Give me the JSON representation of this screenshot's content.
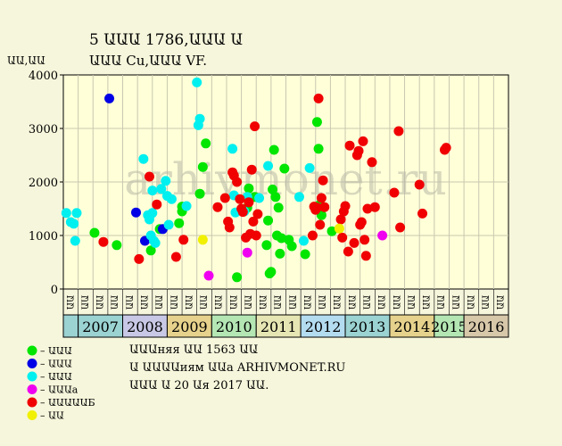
{
  "chart_data": {
    "type": "scatter",
    "title_line1": "5 ԱԱԱ 1786,ԱԱԱ Ա",
    "title_line2": "ԱԱԱ Cu,ԱԱԱ VF.",
    "ylabel": "ԱԱ,ԱԱ",
    "ylim": [
      0,
      4000
    ],
    "yticks": [
      0,
      1000,
      2000,
      3000,
      4000
    ],
    "grid": true,
    "watermark": "arhivmonet.ru",
    "xlim": [
      0,
      30
    ],
    "month_ticks": [
      "ԱԱ",
      "ԱԱ",
      "ԱԱ",
      "ԱԱ",
      "ԱԱ",
      "ԱԱ",
      "ԱԱ",
      "ԱԱ",
      "ԱԱ",
      "ԱԱ",
      "ԱԱ",
      "ԱԱ",
      "ԱԱ",
      "ԱԱ",
      "ԱԱ",
      "ԱԱ",
      "ԱԱ",
      "ԱԱ",
      "ԱԱ",
      "ԱԱ",
      "ԱԱ",
      "ԱԱ",
      "ԱԱ",
      "ԱԱ",
      "ԱԱ",
      "ԱԱ",
      "ԱԱ",
      "ԱԱ",
      "ԱԱ",
      "ԱԱ"
    ],
    "years": [
      {
        "label": "",
        "start": 0,
        "end": 1,
        "color": "#9bd2d2"
      },
      {
        "label": "2007",
        "start": 1,
        "end": 4,
        "color": "#9bd2d2"
      },
      {
        "label": "2008",
        "start": 4,
        "end": 7,
        "color": "#c8c8e6"
      },
      {
        "label": "2009",
        "start": 7,
        "end": 10,
        "color": "#e6d28c"
      },
      {
        "label": "2010",
        "start": 10,
        "end": 13,
        "color": "#b4e6b4"
      },
      {
        "label": "2011",
        "start": 13,
        "end": 16,
        "color": "#e6e6b4"
      },
      {
        "label": "2012",
        "start": 16,
        "end": 19,
        "color": "#b4dcf0"
      },
      {
        "label": "2013",
        "start": 19,
        "end": 22,
        "color": "#9bd2d2"
      },
      {
        "label": "2014",
        "start": 22,
        "end": 25,
        "color": "#e6d28c"
      },
      {
        "label": "2015",
        "start": 25,
        "end": 27,
        "color": "#b4e6b4"
      },
      {
        "label": "2016",
        "start": 27,
        "end": 30,
        "color": "#d7c8aa"
      }
    ],
    "series": [
      {
        "name": "– ԱԱԱ",
        "color": "#00e600",
        "points": [
          [
            2.1,
            1050
          ],
          [
            3.6,
            820
          ],
          [
            5.9,
            720
          ],
          [
            6.5,
            1120
          ],
          [
            7.8,
            1230
          ],
          [
            8.0,
            1450
          ],
          [
            8.0,
            1540
          ],
          [
            9.2,
            1780
          ],
          [
            9.4,
            2280
          ],
          [
            9.6,
            2720
          ],
          [
            11.7,
            220
          ],
          [
            12.4,
            1520
          ],
          [
            12.5,
            1880
          ],
          [
            12.9,
            1720
          ],
          [
            13.7,
            820
          ],
          [
            13.8,
            1280
          ],
          [
            13.9,
            290
          ],
          [
            14.0,
            320
          ],
          [
            14.1,
            1860
          ],
          [
            14.2,
            2600
          ],
          [
            14.3,
            1720
          ],
          [
            14.4,
            1000
          ],
          [
            14.5,
            1520
          ],
          [
            14.6,
            660
          ],
          [
            14.7,
            950
          ],
          [
            14.9,
            2250
          ],
          [
            15.2,
            920
          ],
          [
            15.4,
            800
          ],
          [
            16.3,
            650
          ],
          [
            17.1,
            3120
          ],
          [
            17.2,
            2620
          ],
          [
            17.3,
            1580
          ],
          [
            17.4,
            1380
          ],
          [
            18.1,
            1080
          ]
        ]
      },
      {
        "name": "– ԱԱԱ",
        "color": "#0000e6",
        "points": [
          [
            3.1,
            3560
          ],
          [
            4.9,
            1430
          ],
          [
            5.5,
            900
          ],
          [
            6.7,
            1120
          ]
        ]
      },
      {
        "name": "– ԱԱԱ",
        "color": "#00f0f0",
        "points": [
          [
            0.2,
            1420
          ],
          [
            0.5,
            1250
          ],
          [
            0.7,
            1220
          ],
          [
            0.8,
            900
          ],
          [
            0.9,
            1420
          ],
          [
            5.4,
            2430
          ],
          [
            5.7,
            1380
          ],
          [
            5.8,
            1300
          ],
          [
            5.9,
            1000
          ],
          [
            6.0,
            1840
          ],
          [
            6.0,
            1420
          ],
          [
            6.1,
            900
          ],
          [
            6.2,
            860
          ],
          [
            6.6,
            1870
          ],
          [
            6.9,
            2020
          ],
          [
            7.0,
            1740
          ],
          [
            7.1,
            1200
          ],
          [
            7.3,
            1680
          ],
          [
            8.3,
            1550
          ],
          [
            9.0,
            3860
          ],
          [
            9.1,
            3060
          ],
          [
            9.2,
            3180
          ],
          [
            11.4,
            2620
          ],
          [
            11.5,
            1750
          ],
          [
            11.6,
            1430
          ],
          [
            12.2,
            1450
          ],
          [
            12.4,
            1720
          ],
          [
            13.2,
            1700
          ],
          [
            13.8,
            2300
          ],
          [
            15.9,
            1720
          ],
          [
            16.2,
            900
          ],
          [
            16.6,
            2260
          ]
        ]
      },
      {
        "name": "– ԱԱԱа",
        "color": "#f000f0",
        "points": [
          [
            9.8,
            250
          ],
          [
            12.4,
            680
          ],
          [
            21.5,
            1000
          ]
        ]
      },
      {
        "name": "– ԱԱԱԱԱБ",
        "color": "#f00000",
        "points": [
          [
            2.7,
            880
          ],
          [
            5.1,
            560
          ],
          [
            5.8,
            2100
          ],
          [
            6.3,
            1580
          ],
          [
            7.6,
            600
          ],
          [
            8.1,
            920
          ],
          [
            10.4,
            1530
          ],
          [
            10.9,
            1700
          ],
          [
            11.1,
            1260
          ],
          [
            11.2,
            1150
          ],
          [
            11.4,
            2180
          ],
          [
            11.5,
            2120
          ],
          [
            11.7,
            2000
          ],
          [
            11.9,
            1680
          ],
          [
            12.0,
            1500
          ],
          [
            12.1,
            1440
          ],
          [
            12.3,
            960
          ],
          [
            12.5,
            1620
          ],
          [
            12.6,
            1030
          ],
          [
            12.7,
            2230
          ],
          [
            12.8,
            1260
          ],
          [
            12.9,
            3040
          ],
          [
            13.0,
            1000
          ],
          [
            13.1,
            1400
          ],
          [
            16.8,
            1000
          ],
          [
            16.9,
            1540
          ],
          [
            17.0,
            1480
          ],
          [
            17.1,
            1520
          ],
          [
            17.2,
            3560
          ],
          [
            17.3,
            1200
          ],
          [
            17.4,
            1700
          ],
          [
            17.5,
            2030
          ],
          [
            17.6,
            1530
          ],
          [
            18.7,
            1300
          ],
          [
            18.8,
            960
          ],
          [
            18.9,
            1450
          ],
          [
            19.0,
            1550
          ],
          [
            19.2,
            700
          ],
          [
            19.3,
            2680
          ],
          [
            19.6,
            860
          ],
          [
            19.8,
            2500
          ],
          [
            19.9,
            2580
          ],
          [
            20.0,
            1200
          ],
          [
            20.1,
            1250
          ],
          [
            20.2,
            2760
          ],
          [
            20.3,
            920
          ],
          [
            20.4,
            620
          ],
          [
            20.5,
            1500
          ],
          [
            20.8,
            2370
          ],
          [
            21.0,
            1530
          ],
          [
            22.3,
            1800
          ],
          [
            22.6,
            2950
          ],
          [
            22.7,
            1150
          ],
          [
            24.0,
            1950
          ],
          [
            24.2,
            1410
          ],
          [
            25.7,
            2600
          ],
          [
            25.8,
            2640
          ]
        ]
      },
      {
        "name": "– ԱԱ",
        "color": "#f0f000",
        "points": [
          [
            9.4,
            920
          ],
          [
            18.6,
            1130
          ]
        ]
      }
    ]
  },
  "footer": {
    "line1": "ԱԱԱняя ԱԱ 1563 ԱԱ",
    "line2": "Ա ԱԱԱԱиям ԱԱа ARHIVMONET.RU",
    "line3": "ԱԱԱ Ա 20 Աя 2017 ԱԱ."
  }
}
